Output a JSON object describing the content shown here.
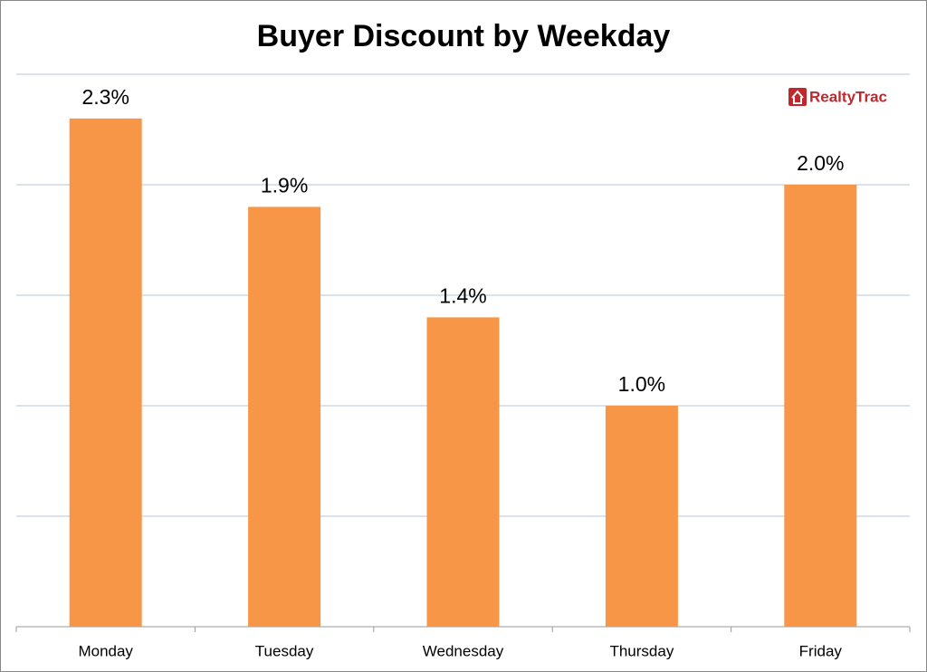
{
  "chart_data": {
    "type": "bar",
    "title": "Buyer Discount by Weekday",
    "categories": [
      "Monday",
      "Tuesday",
      "Wednesday",
      "Thursday",
      "Friday"
    ],
    "values": [
      2.3,
      1.9,
      1.4,
      1.0,
      2.0
    ],
    "value_labels": [
      "2.3%",
      "1.9%",
      "1.4%",
      "1.0%",
      "2.0%"
    ],
    "color": "#f79646",
    "ylim": [
      0,
      2.5
    ],
    "yticks": [
      0,
      0.5,
      1,
      1.5,
      2,
      2.5
    ],
    "grid": true,
    "logo": "RealtyTrac"
  }
}
